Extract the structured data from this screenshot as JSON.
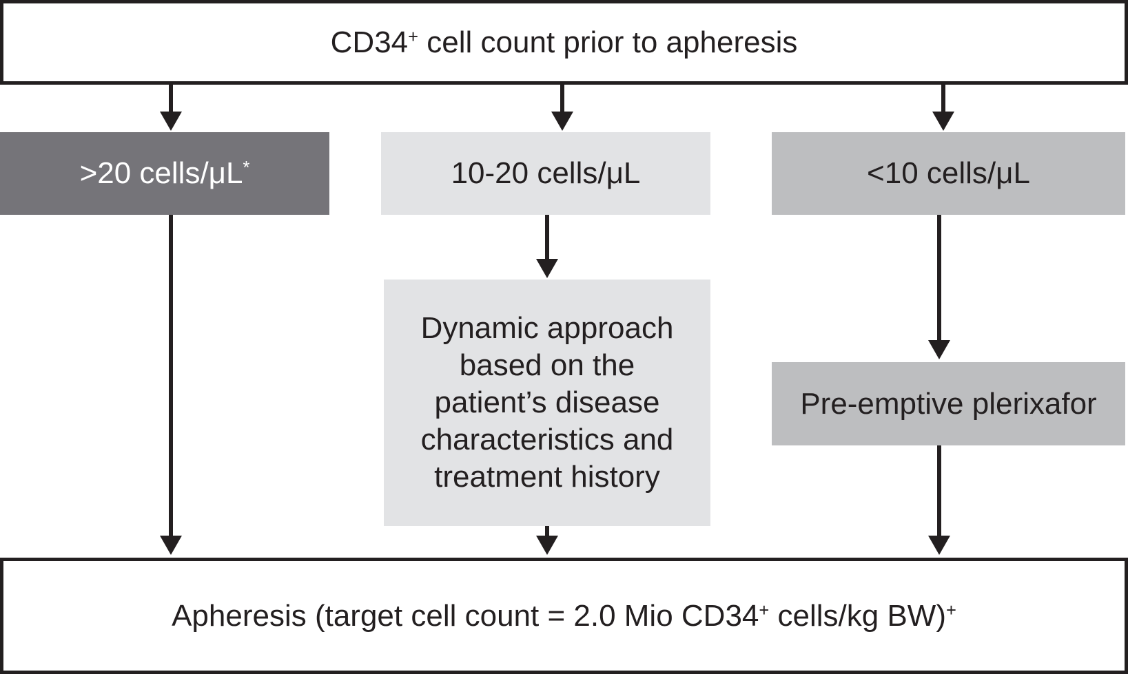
{
  "colors": {
    "ink": "#231f20",
    "dark_gray_box": "#757479",
    "light_gray_box": "#e2e3e5",
    "medium_gray_box": "#bdbec0",
    "dark_box_text": "#ffffff",
    "background": "#ffffff"
  },
  "flowchart": {
    "top": {
      "pre": "CD34",
      "sup": "+",
      "post": " cell count prior to apheresis"
    },
    "left_branch": {
      "label_pre": ">20 cells/μL",
      "label_sup": "*"
    },
    "middle_branch": {
      "label": "10-20 cells/μL",
      "detail_lines": [
        "Dynamic approach",
        "based on the",
        "patient’s disease",
        "characteristics and",
        "treatment history"
      ]
    },
    "right_branch": {
      "label": "<10 cells/μL",
      "action": "Pre-emptive plerixafor"
    },
    "bottom": {
      "pre": "Apheresis (target cell count = 2.0 Mio CD34",
      "sup1": "+",
      "mid": " cells/kg BW)",
      "sup2": "+"
    }
  }
}
